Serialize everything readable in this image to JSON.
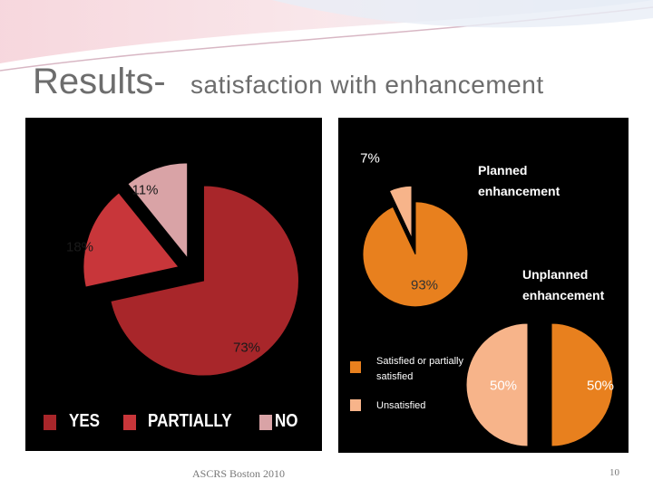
{
  "slide": {
    "title": "Results-",
    "subtitle": "satisfaction with enhancement",
    "footer": "ASCRS Boston 2010",
    "page_number": "10"
  },
  "chart_data": [
    {
      "type": "pie",
      "categories": [
        "YES",
        "PARTIALLY",
        "NO"
      ],
      "values": [
        73,
        18,
        11
      ],
      "value_labels": [
        "73%",
        "18%",
        "11%"
      ],
      "colors": [
        "#a8262a",
        "#c8363a",
        "#d9a3a6"
      ]
    },
    {
      "type": "pie",
      "title": "Planned enhancement",
      "categories": [
        "Satisfied or partially satisfied",
        "Unsatisfied"
      ],
      "values": [
        93,
        7
      ],
      "value_labels": [
        "93%",
        "7%"
      ],
      "colors": [
        "#e8801e",
        "#f7b48a"
      ]
    },
    {
      "type": "pie",
      "title": "Unplanned enhancement",
      "values": [
        50,
        50
      ],
      "value_labels": [
        "50%",
        "50%"
      ],
      "colors": [
        "#e8801e",
        "#f7b48a"
      ]
    }
  ]
}
